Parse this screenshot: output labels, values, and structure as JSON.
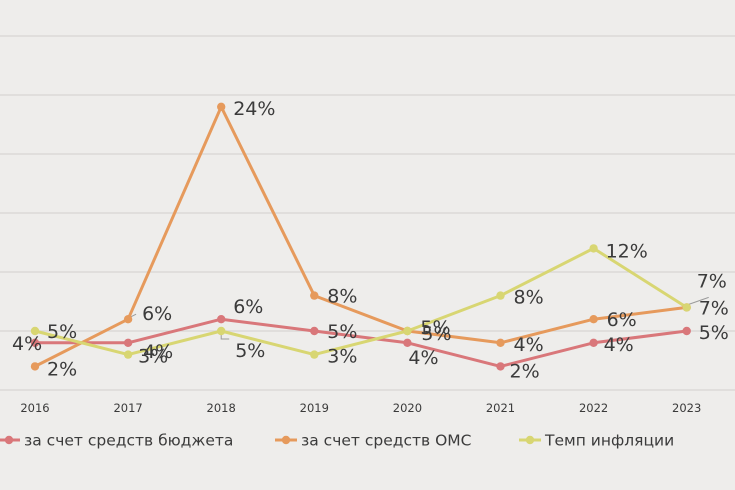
{
  "chart_data": {
    "type": "line",
    "title": "",
    "xlabel": "",
    "ylabel": "",
    "ylim": [
      0,
      30
    ],
    "grid": true,
    "legend_position": "bottom",
    "categories": [
      "2016",
      "2017",
      "2018",
      "2019",
      "2020",
      "2021",
      "2022",
      "2023"
    ],
    "series": [
      {
        "name": "за счет средств бюджета",
        "color": "#d9777a",
        "values": [
          4,
          4,
          6,
          5,
          4,
          2,
          4,
          5
        ],
        "labels": [
          "4%",
          "4%",
          "6%",
          "5%",
          "4%",
          "2%",
          "4%",
          "5%"
        ]
      },
      {
        "name": "за счет средств ОМС",
        "color": "#e69a5c",
        "values": [
          2,
          6,
          24,
          8,
          5,
          4,
          6,
          7
        ],
        "labels": [
          "2%",
          "6%",
          "24%",
          "8%",
          "5%",
          "4%",
          "6%",
          "7%"
        ]
      },
      {
        "name": "Темп инфляции",
        "color": "#d8d672",
        "values": [
          5,
          3,
          5,
          3,
          5,
          8,
          12,
          7
        ],
        "labels": [
          "5%",
          "3%",
          "5%",
          "3%",
          "5%",
          "8%",
          "12%",
          "7%"
        ]
      }
    ]
  }
}
